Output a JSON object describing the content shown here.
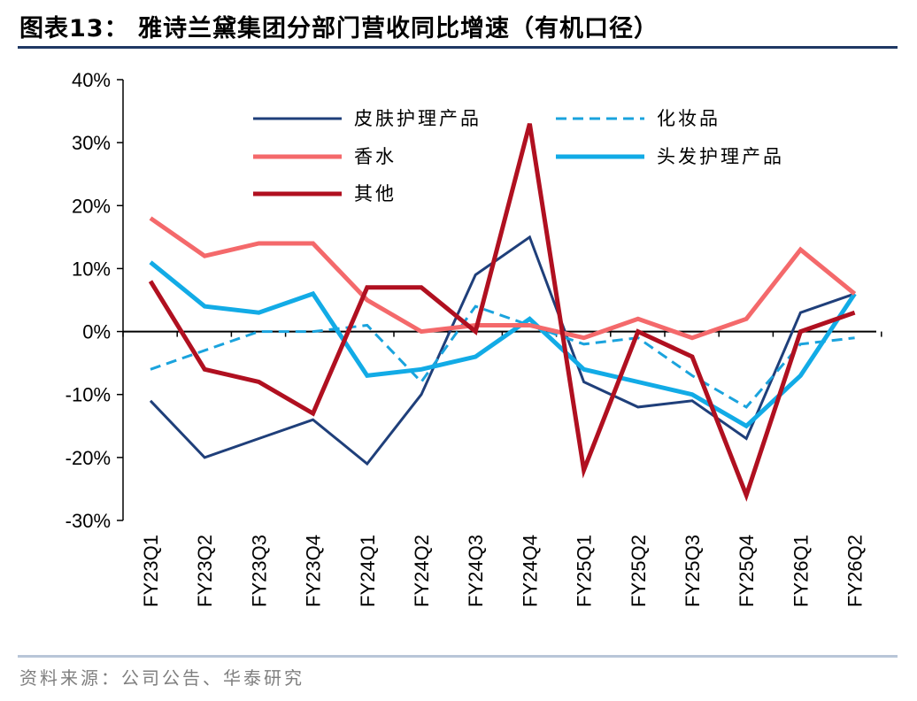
{
  "header": {
    "title": "图表13：  雅诗兰黛集团分部门营收同比增速（有机口径）"
  },
  "footer": {
    "source": "资料来源：公司公告、华泰研究"
  },
  "chart_data": {
    "type": "line",
    "title": "雅诗兰黛集团分部门营收同比增速（有机口径）",
    "xlabel": "",
    "ylabel": "",
    "ylim": [
      -30,
      40
    ],
    "y_ticks": [
      "40%",
      "30%",
      "20%",
      "10%",
      "0%",
      "-10%",
      "-20%",
      "-30%"
    ],
    "y_tick_values": [
      40,
      30,
      20,
      10,
      0,
      -10,
      -20,
      -30
    ],
    "categories": [
      "FY23Q1",
      "FY23Q2",
      "FY23Q3",
      "FY23Q4",
      "FY24Q1",
      "FY24Q2",
      "FY24Q3",
      "FY24Q4",
      "FY25Q1",
      "FY25Q2",
      "FY25Q3",
      "FY25Q4",
      "FY26Q1",
      "FY26Q2"
    ],
    "legend_position": "top",
    "series": [
      {
        "name": "皮肤护理产品",
        "color": "#1f3f7a",
        "dash": "solid",
        "width": 3,
        "values": [
          -11,
          -20,
          -17,
          -14,
          -21,
          -10,
          9,
          15,
          -8,
          -12,
          -11,
          -17,
          3,
          6
        ]
      },
      {
        "name": "化妆品",
        "color": "#1aa3dd",
        "dash": "dashed",
        "width": 3,
        "values": [
          -6,
          -3,
          0,
          0,
          1,
          -8,
          4,
          1,
          -2,
          -1,
          -7,
          -12,
          -2,
          -1
        ]
      },
      {
        "name": "香水",
        "color": "#f4696b",
        "dash": "solid",
        "width": 5,
        "values": [
          18,
          12,
          14,
          14,
          5,
          0,
          1,
          1,
          -1,
          2,
          -1,
          2,
          13,
          6
        ]
      },
      {
        "name": "头发护理产品",
        "color": "#12abe6",
        "dash": "solid",
        "width": 5,
        "values": [
          11,
          4,
          3,
          6,
          -7,
          -6,
          -4,
          2,
          -6,
          -8,
          -10,
          -15,
          -7,
          6
        ]
      },
      {
        "name": "其他",
        "color": "#b01020",
        "dash": "solid",
        "width": 5,
        "values": [
          8,
          -6,
          -8,
          -13,
          7,
          7,
          0,
          33,
          -22,
          0,
          -4,
          -26,
          0,
          3
        ]
      }
    ]
  }
}
